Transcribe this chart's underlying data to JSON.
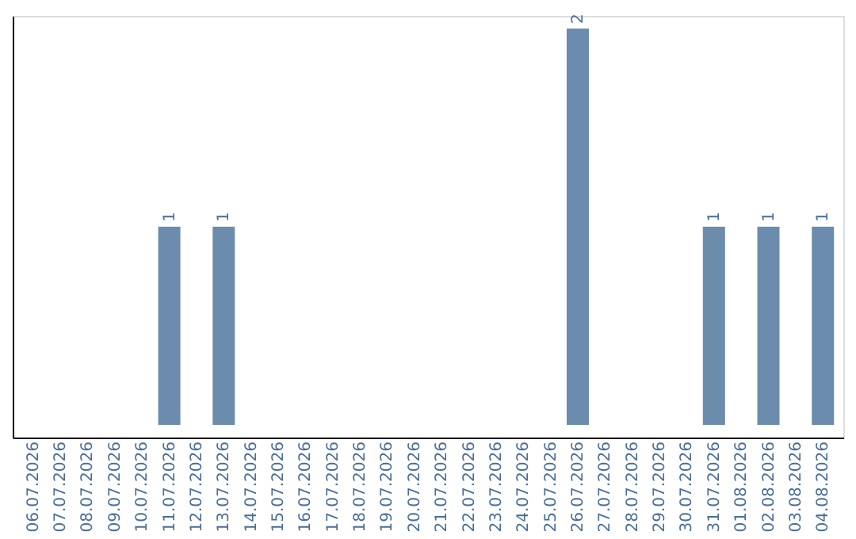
{
  "chart_data": {
    "type": "bar",
    "categories": [
      "06.07.2026",
      "07.07.2026",
      "08.07.2026",
      "09.07.2026",
      "10.07.2026",
      "11.07.2026",
      "12.07.2026",
      "13.07.2026",
      "14.07.2026",
      "15.07.2026",
      "16.07.2026",
      "17.07.2026",
      "18.07.2026",
      "19.07.2026",
      "20.07.2026",
      "21.07.2026",
      "22.07.2026",
      "23.07.2026",
      "24.07.2026",
      "25.07.2026",
      "26.07.2026",
      "27.07.2026",
      "28.07.2026",
      "29.07.2026",
      "30.07.2026",
      "31.07.2026",
      "01.08.2026",
      "02.08.2026",
      "03.08.2026",
      "04.08.2026"
    ],
    "values": [
      0,
      0,
      0,
      0,
      0,
      1,
      0,
      1,
      0,
      0,
      0,
      0,
      0,
      0,
      0,
      0,
      0,
      0,
      0,
      0,
      2,
      0,
      0,
      0,
      0,
      1,
      0,
      1,
      0,
      1
    ],
    "value_labels": [
      null,
      null,
      null,
      null,
      null,
      "1",
      null,
      "1",
      null,
      null,
      null,
      null,
      null,
      null,
      null,
      null,
      null,
      null,
      null,
      null,
      "2",
      null,
      null,
      null,
      null,
      "1",
      null,
      "1",
      null,
      "1"
    ],
    "color": "#6b8cac",
    "tick_labels": "x"
  }
}
